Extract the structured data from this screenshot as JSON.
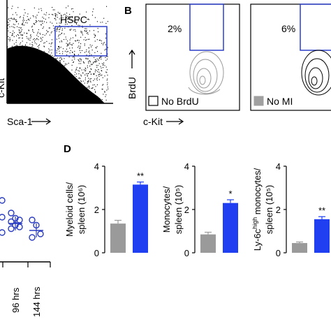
{
  "panels": {
    "a": {
      "gate_label": "HSPC",
      "xlabel": "Sca-1",
      "ylabel": "c-Kit"
    },
    "b": {
      "label": "B",
      "xlabel": "c-Kit",
      "ylabel": "BrdU",
      "plots": [
        {
          "percent": "2%",
          "legend": "No BrdU",
          "legend_color": "#ffffff"
        },
        {
          "percent": "6%",
          "legend": "No MI",
          "legend_color": "#a0a0a0"
        }
      ]
    },
    "c": {
      "timepoints": [
        "96 hrs",
        "144 hrs"
      ]
    },
    "d": {
      "label": "D"
    }
  },
  "colors": {
    "gate": "#2b3fc8",
    "bar_control": "#9a9a9a",
    "bar_treated": "#1f3ff0",
    "dot": "#2a3cc0"
  },
  "chart_data": [
    {
      "type": "scatter",
      "panel": "C",
      "categories": [
        "96 hrs",
        "144 hrs"
      ],
      "points": [
        {
          "category": "96 hrs",
          "values": [
            1.4,
            1.25,
            1.2,
            1.15,
            1.05,
            1.0,
            0.95
          ]
        },
        {
          "category": "144 hrs",
          "values": [
            1.2,
            1.05,
            0.8,
            0.7
          ]
        }
      ],
      "means": [
        1.1,
        0.9
      ]
    },
    {
      "type": "bar",
      "panel": "D",
      "ylabel_lines": [
        "Myeloid cells/",
        "spleen (10⁶)"
      ],
      "ylim": [
        0,
        4
      ],
      "yticks": [
        "0",
        "2",
        "4"
      ],
      "values": [
        1.35,
        3.15
      ],
      "errors": [
        0.15,
        0.12
      ],
      "significance": "**"
    },
    {
      "type": "bar",
      "panel": "D",
      "ylabel_lines": [
        "Monocytes/",
        "spleen (10⁵)"
      ],
      "ylim": [
        0,
        4
      ],
      "yticks": [
        "0",
        "2",
        "4"
      ],
      "values": [
        0.85,
        2.3
      ],
      "errors": [
        0.1,
        0.15
      ],
      "significance": "*"
    },
    {
      "type": "bar",
      "panel": "D",
      "ylabel_lines": [
        "Ly-6c",
        "high",
        " monocytes/",
        "spleen (10⁵)"
      ],
      "ylim": [
        0,
        4
      ],
      "yticks": [
        "0",
        "2",
        "4"
      ],
      "values": [
        0.45,
        1.55
      ],
      "errors": [
        0.05,
        0.12
      ],
      "significance": "**"
    }
  ]
}
